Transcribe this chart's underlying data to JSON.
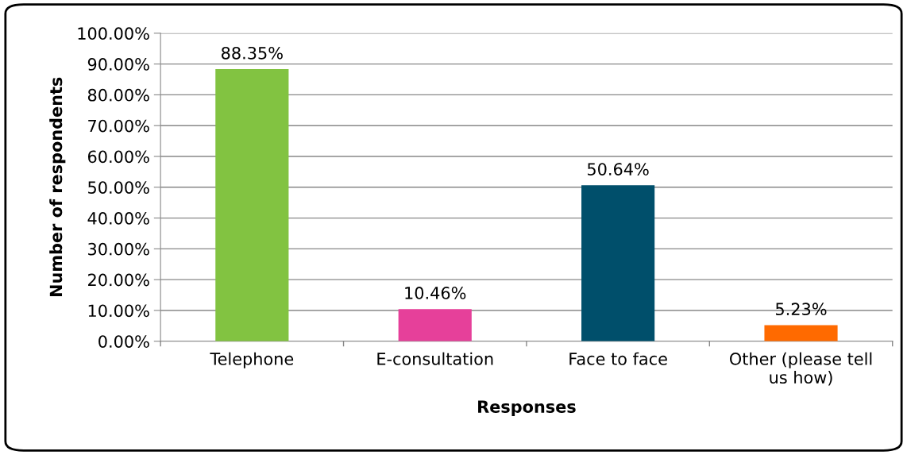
{
  "chart_data": {
    "type": "bar",
    "xlabel": "Responses",
    "ylabel": "Number of respondents",
    "categories": [
      "Telephone",
      "E-consultation",
      "Face to face",
      "Other (please tell\nus how)"
    ],
    "values": [
      88.35,
      10.46,
      50.64,
      5.23
    ],
    "colors": [
      "#82c341",
      "#e6409a",
      "#004f6b",
      "#ff6a00"
    ],
    "value_labels": [
      "88.35%",
      "10.46%",
      "50.64%",
      "5.23%"
    ],
    "ylim": [
      0,
      100
    ],
    "yticks": [
      {
        "value": 0,
        "label": "0.00%"
      },
      {
        "value": 10,
        "label": "10.00%"
      },
      {
        "value": 20,
        "label": "20.00%"
      },
      {
        "value": 30,
        "label": "30.00%"
      },
      {
        "value": 40,
        "label": "40.00%"
      },
      {
        "value": 50,
        "label": "50.00%"
      },
      {
        "value": 60,
        "label": "60.00%"
      },
      {
        "value": 70,
        "label": "70.00%"
      },
      {
        "value": 80,
        "label": "80.00%"
      },
      {
        "value": 90,
        "label": "90.00%"
      },
      {
        "value": 100,
        "label": "100.00%"
      }
    ],
    "grid": "y"
  }
}
